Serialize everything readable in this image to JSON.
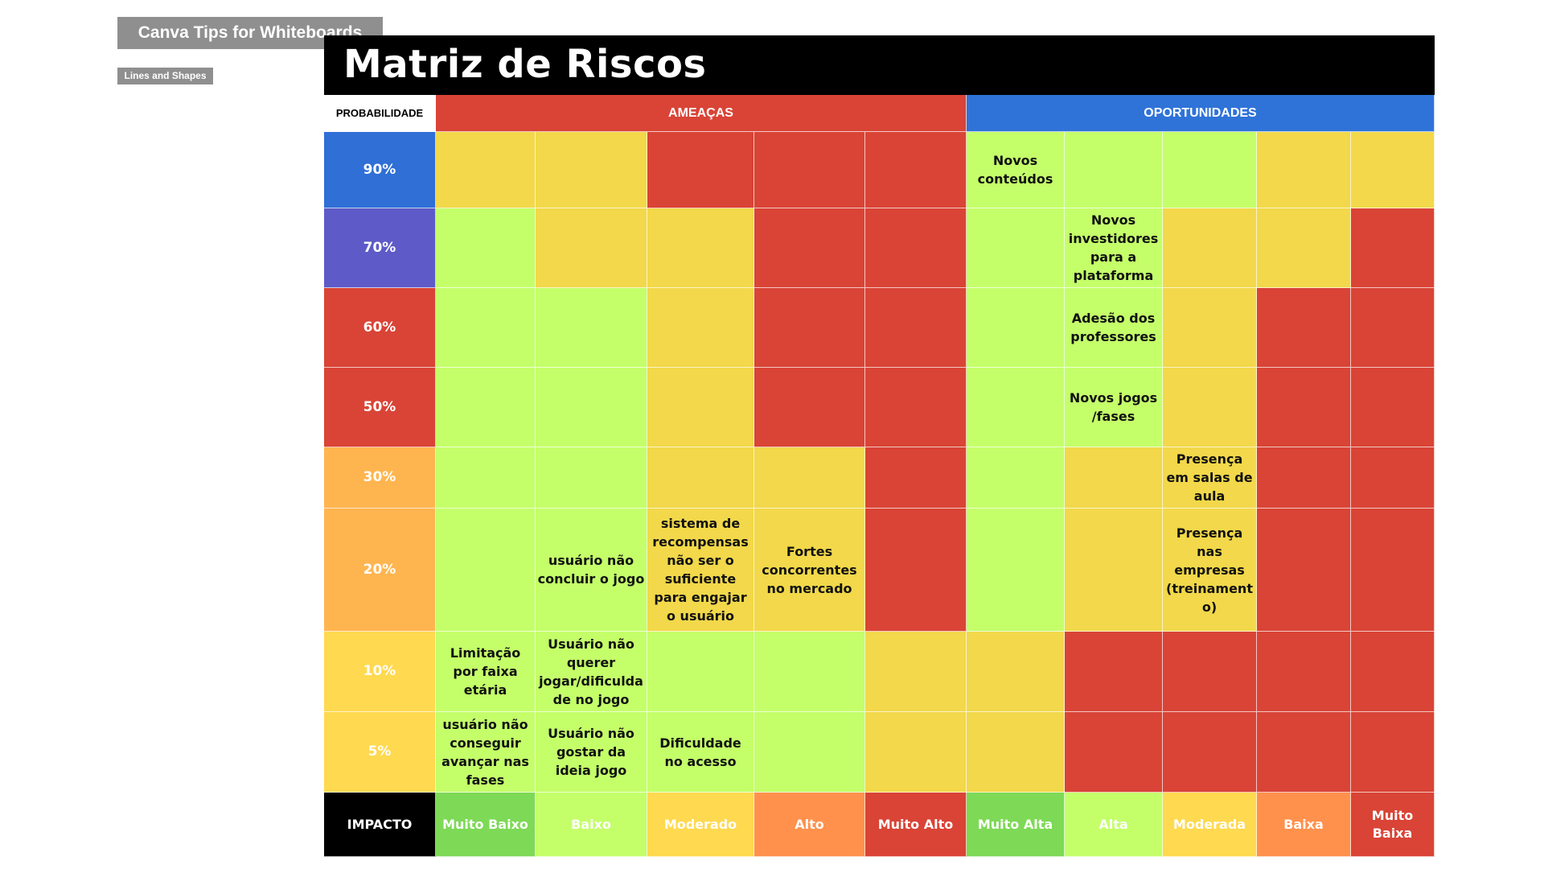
{
  "header": {
    "app_title": "Canva Tips for Whiteboards",
    "subtitle": "Lines and Shapes",
    "page_title": "Matriz de Riscos"
  },
  "colors": {
    "green": "#c4ff6a",
    "yellow": "#f2d84a",
    "red": "#d94436",
    "ameacas_header": "#d94436",
    "oportunidades_header": "#2f73d8",
    "impact_muito_baixo": "#7ed957",
    "impact_baixo": "#c4ff6a",
    "impact_moderado": "#ffd94f",
    "impact_alto": "#ff914d",
    "impact_muito_alto": "#d94436"
  },
  "matrix": {
    "probability_label": "PROBABILIDADE",
    "threats_label": "AMEAÇAS",
    "opportunities_label": "OPORTUNIDADES",
    "impact_label": "IMPACTO",
    "rows": [
      {
        "probability": "90%",
        "color": "#2f6fd6",
        "cells": [
          {
            "color": "yellow",
            "text": ""
          },
          {
            "color": "yellow",
            "text": ""
          },
          {
            "color": "red",
            "text": ""
          },
          {
            "color": "red",
            "text": ""
          },
          {
            "color": "red",
            "text": ""
          },
          {
            "color": "green",
            "text": "Novos conteúdos"
          },
          {
            "color": "green",
            "text": ""
          },
          {
            "color": "green",
            "text": ""
          },
          {
            "color": "yellow",
            "text": ""
          },
          {
            "color": "yellow",
            "text": ""
          }
        ]
      },
      {
        "probability": "70%",
        "color": "#5e5bc8",
        "cells": [
          {
            "color": "green",
            "text": ""
          },
          {
            "color": "yellow",
            "text": ""
          },
          {
            "color": "yellow",
            "text": ""
          },
          {
            "color": "red",
            "text": ""
          },
          {
            "color": "red",
            "text": ""
          },
          {
            "color": "green",
            "text": ""
          },
          {
            "color": "green",
            "text": "Novos investidores para a plataforma"
          },
          {
            "color": "yellow",
            "text": ""
          },
          {
            "color": "yellow",
            "text": ""
          },
          {
            "color": "red",
            "text": ""
          }
        ]
      },
      {
        "probability": "60%",
        "color": "#d94436",
        "cells": [
          {
            "color": "green",
            "text": ""
          },
          {
            "color": "green",
            "text": ""
          },
          {
            "color": "yellow",
            "text": ""
          },
          {
            "color": "red",
            "text": ""
          },
          {
            "color": "red",
            "text": ""
          },
          {
            "color": "green",
            "text": ""
          },
          {
            "color": "green",
            "text": "Adesão dos professores"
          },
          {
            "color": "yellow",
            "text": ""
          },
          {
            "color": "red",
            "text": ""
          },
          {
            "color": "red",
            "text": ""
          }
        ]
      },
      {
        "probability": "50%",
        "color": "#d94436",
        "cells": [
          {
            "color": "green",
            "text": ""
          },
          {
            "color": "green",
            "text": ""
          },
          {
            "color": "yellow",
            "text": ""
          },
          {
            "color": "red",
            "text": ""
          },
          {
            "color": "red",
            "text": ""
          },
          {
            "color": "green",
            "text": ""
          },
          {
            "color": "green",
            "text": "Novos jogos /fases"
          },
          {
            "color": "yellow",
            "text": ""
          },
          {
            "color": "red",
            "text": ""
          },
          {
            "color": "red",
            "text": ""
          }
        ]
      },
      {
        "probability": "30%",
        "color": "#ffb54f",
        "cells": [
          {
            "color": "green",
            "text": ""
          },
          {
            "color": "green",
            "text": ""
          },
          {
            "color": "yellow",
            "text": ""
          },
          {
            "color": "yellow",
            "text": ""
          },
          {
            "color": "red",
            "text": ""
          },
          {
            "color": "green",
            "text": ""
          },
          {
            "color": "yellow",
            "text": ""
          },
          {
            "color": "yellow",
            "text": "Presença em salas de aula"
          },
          {
            "color": "red",
            "text": ""
          },
          {
            "color": "red",
            "text": ""
          }
        ]
      },
      {
        "probability": "20%",
        "color": "#ffb54f",
        "cells": [
          {
            "color": "green",
            "text": ""
          },
          {
            "color": "green",
            "text": "usuário não concluir o jogo"
          },
          {
            "color": "yellow",
            "text": "sistema de recompensas não ser o suficiente para engajar o usuário"
          },
          {
            "color": "yellow",
            "text": "Fortes concorrentes no mercado"
          },
          {
            "color": "red",
            "text": ""
          },
          {
            "color": "green",
            "text": ""
          },
          {
            "color": "yellow",
            "text": ""
          },
          {
            "color": "yellow",
            "text": "Presença nas empresas (treinamento)"
          },
          {
            "color": "red",
            "text": ""
          },
          {
            "color": "red",
            "text": ""
          }
        ]
      },
      {
        "probability": "10%",
        "color": "#ffd94f",
        "cells": [
          {
            "color": "green",
            "text": "Limitação por faixa etária"
          },
          {
            "color": "green",
            "text": "Usuário não querer jogar/dificuldade no jogo"
          },
          {
            "color": "green",
            "text": ""
          },
          {
            "color": "green",
            "text": ""
          },
          {
            "color": "yellow",
            "text": ""
          },
          {
            "color": "yellow",
            "text": ""
          },
          {
            "color": "red",
            "text": ""
          },
          {
            "color": "red",
            "text": ""
          },
          {
            "color": "red",
            "text": ""
          },
          {
            "color": "red",
            "text": ""
          }
        ]
      },
      {
        "probability": "5%",
        "color": "#ffd94f",
        "cells": [
          {
            "color": "green",
            "text": "usuário não conseguir avançar nas fases"
          },
          {
            "color": "green",
            "text": "Usuário não gostar da ideia jogo"
          },
          {
            "color": "green",
            "text": "Dificuldade no acesso"
          },
          {
            "color": "green",
            "text": ""
          },
          {
            "color": "yellow",
            "text": ""
          },
          {
            "color": "yellow",
            "text": ""
          },
          {
            "color": "red",
            "text": ""
          },
          {
            "color": "red",
            "text": ""
          },
          {
            "color": "red",
            "text": ""
          },
          {
            "color": "red",
            "text": ""
          }
        ]
      }
    ],
    "impact_threats": [
      {
        "label": "Muito Baixo",
        "color": "#7ed957"
      },
      {
        "label": "Baixo",
        "color": "#c4ff6a"
      },
      {
        "label": "Moderado",
        "color": "#ffd94f"
      },
      {
        "label": "Alto",
        "color": "#ff914d"
      },
      {
        "label": "Muito Alto",
        "color": "#d94436"
      }
    ],
    "impact_opportunities": [
      {
        "label": "Muito Alta",
        "color": "#7ed957"
      },
      {
        "label": "Alta",
        "color": "#c4ff6a"
      },
      {
        "label": "Moderada",
        "color": "#ffd94f"
      },
      {
        "label": "Baixa",
        "color": "#ff914d"
      },
      {
        "label": "Muito Baixa",
        "color": "#d94436"
      }
    ]
  }
}
